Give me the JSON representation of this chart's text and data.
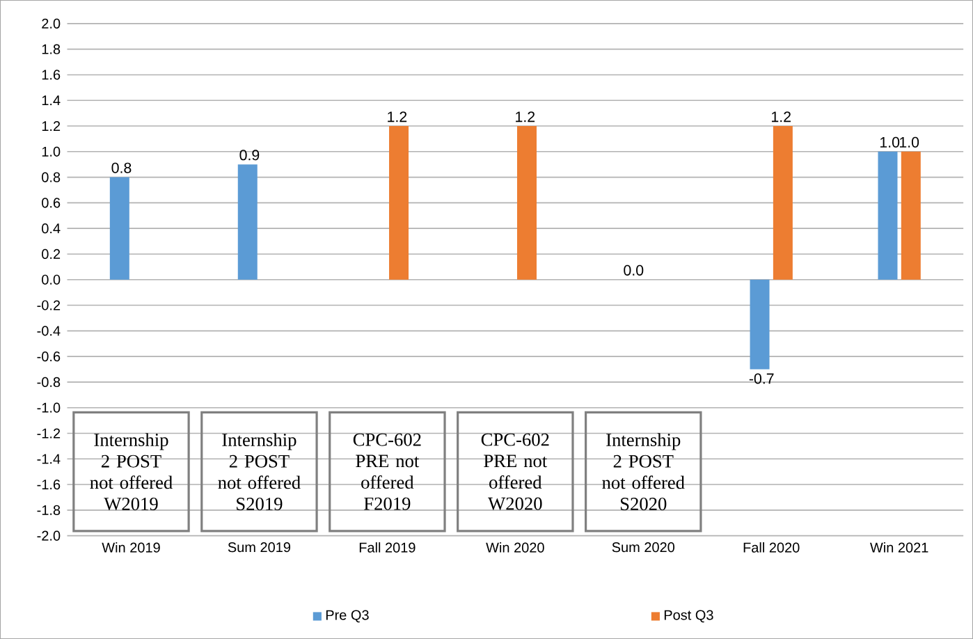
{
  "chart_data": {
    "type": "bar",
    "categories": [
      "Win 2019",
      "Sum 2019",
      "Fall 2019",
      "Win 2020",
      "Sum 2020",
      "Fall 2020",
      "Win 2021"
    ],
    "series": [
      {
        "name": "Pre Q3",
        "color": "#5b9bd5",
        "values": [
          0.8,
          0.9,
          null,
          null,
          0.0,
          -0.7,
          1.0
        ],
        "value_labels": [
          "0.8",
          "0.9",
          null,
          null,
          "0.0",
          "-0.7",
          "1.0"
        ]
      },
      {
        "name": "Post Q3",
        "color": "#ed7d31",
        "values": [
          null,
          null,
          1.2,
          1.2,
          null,
          1.2,
          1.0
        ],
        "value_labels": [
          null,
          null,
          "1.2",
          "1.2",
          null,
          "1.2",
          "1.0"
        ]
      }
    ],
    "ylim": [
      -2,
      2
    ],
    "yticks": [
      {
        "value": -2,
        "label": "-2.0"
      },
      {
        "value": -1.8,
        "label": "-1.8"
      },
      {
        "value": -1.6,
        "label": "-1.6"
      },
      {
        "value": -1.4,
        "label": "-1.4"
      },
      {
        "value": -1.2,
        "label": "-1.2"
      },
      {
        "value": -1,
        "label": "-1.0"
      },
      {
        "value": -0.8,
        "label": "-0.8"
      },
      {
        "value": -0.6,
        "label": "-0.6"
      },
      {
        "value": -0.4,
        "label": "-0.4"
      },
      {
        "value": -0.2,
        "label": "-0.2"
      },
      {
        "value": 0,
        "label": "0.0"
      },
      {
        "value": 0.2,
        "label": "0.2"
      },
      {
        "value": 0.4,
        "label": "0.4"
      },
      {
        "value": 0.6,
        "label": "0.6"
      },
      {
        "value": 0.8,
        "label": "0.8"
      },
      {
        "value": 1,
        "label": "1.0"
      },
      {
        "value": 1.2,
        "label": "1.2"
      },
      {
        "value": 1.4,
        "label": "1.4"
      },
      {
        "value": 1.6,
        "label": "1.6"
      },
      {
        "value": 1.8,
        "label": "1.8"
      },
      {
        "value": 2,
        "label": "2.0"
      }
    ],
    "grid": "y",
    "legend": "bottom",
    "annotations": [
      "Internship 2 POST not offered W2019",
      "Internship 2 POST not offered S2019",
      "CPC-602 PRE not offered F2019",
      "CPC-602 PRE not offered W2020",
      "Internship 2 POST not offered S2020"
    ]
  }
}
